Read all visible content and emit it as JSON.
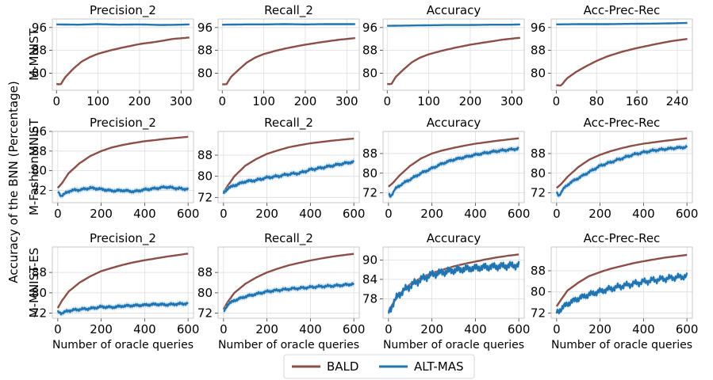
{
  "figure": {
    "ylabel": "Accuracy of the BNN (Percentage)",
    "xlabel": "Number of oracle queries",
    "colors": {
      "BALD": "#8c4f47",
      "ALT-MAS": "#1f74b1",
      "band": "#9ec9e8"
    },
    "legend": {
      "placement": "bottom-center",
      "entries": [
        "BALD",
        "ALT-MAS"
      ]
    }
  },
  "chart_data": [
    {
      "type": "line",
      "row": 0,
      "col": 0,
      "row_label": "M-MNIST",
      "title": "Precision_2",
      "xlim": [
        -10,
        330
      ],
      "ylim": [
        74,
        99
      ],
      "xticks": [
        0,
        100,
        200,
        300
      ],
      "yticks": [
        80,
        88,
        96
      ],
      "xlabel": "",
      "series": [
        {
          "name": "BALD",
          "x": [
            0,
            10,
            20,
            40,
            60,
            80,
            100,
            130,
            160,
            200,
            240,
            280,
            320
          ],
          "y": [
            76.2,
            76.0,
            78.4,
            81.5,
            84.0,
            85.6,
            86.8,
            88.0,
            89.0,
            90.2,
            91.0,
            92.0,
            92.5
          ]
        },
        {
          "name": "ALT-MAS",
          "x": [
            0,
            50,
            100,
            150,
            200,
            250,
            300,
            320
          ],
          "y": [
            97.1,
            97.0,
            97.2,
            97.0,
            97.1,
            96.9,
            97.0,
            97.1
          ]
        }
      ]
    },
    {
      "type": "line",
      "row": 0,
      "col": 1,
      "row_label": "",
      "title": "Recall_2",
      "xlim": [
        -10,
        330
      ],
      "ylim": [
        74,
        99
      ],
      "xticks": [
        0,
        100,
        200,
        300
      ],
      "yticks": [
        80,
        88,
        96
      ],
      "xlabel": "",
      "series": [
        {
          "name": "BALD",
          "x": [
            0,
            10,
            20,
            40,
            60,
            80,
            100,
            130,
            160,
            200,
            240,
            280,
            320
          ],
          "y": [
            76.1,
            76.0,
            78.5,
            81.3,
            83.8,
            85.5,
            86.7,
            87.9,
            88.9,
            90.0,
            90.9,
            91.7,
            92.3
          ]
        },
        {
          "name": "ALT-MAS",
          "x": [
            0,
            50,
            100,
            150,
            200,
            250,
            300,
            320
          ],
          "y": [
            97.0,
            97.1,
            97.1,
            97.2,
            97.1,
            97.2,
            97.2,
            97.2
          ]
        }
      ]
    },
    {
      "type": "line",
      "row": 0,
      "col": 2,
      "row_label": "",
      "title": "Accuracy",
      "xlim": [
        -10,
        330
      ],
      "ylim": [
        74,
        99
      ],
      "xticks": [
        0,
        100,
        200,
        300
      ],
      "yticks": [
        80,
        88,
        96
      ],
      "xlabel": "",
      "series": [
        {
          "name": "BALD",
          "x": [
            0,
            10,
            20,
            40,
            60,
            80,
            100,
            130,
            160,
            200,
            240,
            280,
            320
          ],
          "y": [
            76.2,
            76.1,
            78.6,
            81.4,
            83.9,
            85.5,
            86.6,
            87.8,
            88.8,
            90.0,
            90.9,
            91.8,
            92.4
          ]
        },
        {
          "name": "ALT-MAS",
          "x": [
            0,
            50,
            100,
            150,
            200,
            250,
            300,
            320
          ],
          "y": [
            96.6,
            96.7,
            96.8,
            96.9,
            96.9,
            97.0,
            97.0,
            97.1
          ]
        }
      ]
    },
    {
      "type": "line",
      "row": 0,
      "col": 3,
      "row_label": "",
      "title": "Acc-Prec-Rec",
      "xlim": [
        -10,
        270
      ],
      "ylim": [
        74,
        99
      ],
      "xticks": [
        0,
        80,
        160,
        240
      ],
      "yticks": [
        80,
        88,
        96
      ],
      "xlabel": "",
      "series": [
        {
          "name": "BALD",
          "x": [
            0,
            10,
            20,
            40,
            60,
            80,
            100,
            130,
            160,
            200,
            230,
            260
          ],
          "y": [
            75.8,
            75.6,
            78.0,
            80.5,
            82.5,
            84.3,
            85.8,
            87.5,
            88.8,
            90.3,
            91.3,
            92.0
          ]
        },
        {
          "name": "ALT-MAS",
          "x": [
            0,
            50,
            100,
            150,
            200,
            260
          ],
          "y": [
            97.1,
            97.2,
            97.2,
            97.3,
            97.4,
            97.6
          ]
        }
      ]
    },
    {
      "type": "line",
      "row": 1,
      "col": 0,
      "row_label": "M-FashionMNIST",
      "title": "Precision_2",
      "xlim": [
        -25,
        625
      ],
      "ylim": [
        67,
        96
      ],
      "xticks": [
        0,
        200,
        400,
        600
      ],
      "yticks": [
        72,
        80,
        88,
        96
      ],
      "xlabel": "",
      "series": [
        {
          "name": "BALD",
          "x": [
            0,
            20,
            50,
            100,
            150,
            200,
            250,
            300,
            350,
            400,
            450,
            500,
            550,
            600
          ],
          "y": [
            73,
            75,
            79,
            83,
            86,
            88,
            89.5,
            90.5,
            91.3,
            92,
            92.5,
            93,
            93.4,
            93.8
          ]
        },
        {
          "name": "ALT-MAS",
          "x": [
            0,
            15,
            30,
            60,
            100,
            150,
            200,
            250,
            300,
            350,
            400,
            450,
            500,
            550,
            600
          ],
          "y": [
            71.5,
            69.8,
            70.5,
            72.0,
            72.2,
            73.0,
            72.5,
            71.8,
            72.0,
            71.5,
            72.3,
            72.8,
            73.4,
            72.8,
            72.5
          ]
        }
      ]
    },
    {
      "type": "line",
      "row": 1,
      "col": 1,
      "row_label": "",
      "title": "Recall_2",
      "xlim": [
        -25,
        625
      ],
      "ylim": [
        70,
        97
      ],
      "xticks": [
        0,
        200,
        400,
        600
      ],
      "yticks": [
        72,
        80,
        88
      ],
      "xlabel": "",
      "series": [
        {
          "name": "BALD",
          "x": [
            0,
            20,
            50,
            100,
            150,
            200,
            250,
            300,
            350,
            400,
            450,
            500,
            550,
            600
          ],
          "y": [
            74,
            76.5,
            80,
            84,
            86.5,
            88.5,
            89.8,
            91,
            91.8,
            92.5,
            93,
            93.5,
            93.9,
            94.3
          ]
        },
        {
          "name": "ALT-MAS",
          "x": [
            0,
            20,
            50,
            100,
            150,
            200,
            250,
            300,
            350,
            400,
            450,
            500,
            550,
            600
          ],
          "y": [
            73.5,
            75.5,
            76.5,
            78,
            78.5,
            79.5,
            80,
            80.8,
            81.2,
            82.5,
            83.2,
            84.0,
            84.8,
            85.5
          ]
        }
      ]
    },
    {
      "type": "line",
      "row": 1,
      "col": 2,
      "row_label": "",
      "title": "Accuracy",
      "xlim": [
        -25,
        625
      ],
      "ylim": [
        68,
        97
      ],
      "xticks": [
        0,
        200,
        400,
        600
      ],
      "yticks": [
        72,
        80,
        88
      ],
      "xlabel": "",
      "series": [
        {
          "name": "BALD",
          "x": [
            0,
            20,
            50,
            100,
            150,
            200,
            250,
            300,
            350,
            400,
            450,
            500,
            550,
            600
          ],
          "y": [
            74.5,
            76,
            79,
            83,
            86,
            88,
            89.3,
            90.3,
            91.2,
            92,
            92.6,
            93.2,
            93.7,
            94.2
          ]
        },
        {
          "name": "ALT-MAS",
          "x": [
            0,
            10,
            30,
            60,
            100,
            150,
            200,
            250,
            300,
            350,
            400,
            450,
            500,
            550,
            600
          ],
          "y": [
            71.5,
            70.5,
            73.5,
            75.5,
            77.5,
            80,
            82,
            84,
            85.5,
            86.5,
            87.5,
            88.3,
            89,
            89.5,
            90
          ]
        }
      ]
    },
    {
      "type": "line",
      "row": 1,
      "col": 3,
      "row_label": "",
      "title": "Acc-Prec-Rec",
      "xlim": [
        -25,
        625
      ],
      "ylim": [
        68,
        97
      ],
      "xticks": [
        0,
        200,
        400,
        600
      ],
      "yticks": [
        72,
        80,
        88
      ],
      "xlabel": "",
      "series": [
        {
          "name": "BALD",
          "x": [
            0,
            20,
            50,
            100,
            150,
            200,
            250,
            300,
            350,
            400,
            450,
            500,
            550,
            600
          ],
          "y": [
            74,
            75.5,
            78.5,
            82.5,
            85.5,
            87.5,
            89,
            90.2,
            91.2,
            92,
            92.6,
            93.2,
            93.7,
            94.2
          ]
        },
        {
          "name": "ALT-MAS",
          "x": [
            0,
            10,
            30,
            60,
            100,
            150,
            200,
            250,
            300,
            350,
            400,
            450,
            500,
            550,
            600
          ],
          "y": [
            72,
            70.8,
            73.5,
            76,
            78,
            80.5,
            83,
            84.5,
            86,
            87.5,
            88.5,
            89.3,
            89.8,
            90.3,
            90.6
          ]
        }
      ]
    },
    {
      "type": "line",
      "row": 2,
      "col": 0,
      "row_label": "M-MNIST-ES",
      "title": "Precision_2",
      "xlim": [
        -25,
        625
      ],
      "ylim": [
        70,
        98
      ],
      "xticks": [
        0,
        200,
        400,
        600
      ],
      "yticks": [
        72,
        80,
        88
      ],
      "xlabel": "Number of oracle queries",
      "series": [
        {
          "name": "BALD",
          "x": [
            0,
            20,
            50,
            100,
            150,
            200,
            250,
            300,
            350,
            400,
            450,
            500,
            550,
            600
          ],
          "y": [
            74,
            77,
            80.5,
            84,
            86.5,
            88.5,
            89.8,
            91,
            92,
            92.8,
            93.5,
            94.2,
            94.8,
            95.4
          ]
        },
        {
          "name": "ALT-MAS",
          "x": [
            0,
            20,
            50,
            100,
            150,
            200,
            250,
            300,
            350,
            400,
            450,
            500,
            550,
            600
          ],
          "y": [
            72.5,
            72.0,
            73.0,
            73.5,
            73.8,
            74.5,
            74.3,
            74.8,
            75.0,
            75.2,
            75.5,
            75.3,
            75.6,
            75.8
          ]
        }
      ]
    },
    {
      "type": "line",
      "row": 2,
      "col": 1,
      "row_label": "",
      "title": "Recall_2",
      "xlim": [
        -25,
        625
      ],
      "ylim": [
        70,
        98
      ],
      "xticks": [
        0,
        200,
        400,
        600
      ],
      "yticks": [
        72,
        80,
        88
      ],
      "xlabel": "Number of oracle queries",
      "series": [
        {
          "name": "BALD",
          "x": [
            0,
            20,
            50,
            100,
            150,
            200,
            250,
            300,
            350,
            400,
            450,
            500,
            550,
            600
          ],
          "y": [
            73.5,
            76.5,
            80,
            83.5,
            86,
            88,
            89.5,
            90.8,
            91.8,
            92.7,
            93.5,
            94.2,
            94.8,
            95.3
          ]
        },
        {
          "name": "ALT-MAS",
          "x": [
            0,
            20,
            50,
            100,
            150,
            200,
            250,
            300,
            350,
            400,
            450,
            500,
            550,
            600
          ],
          "y": [
            72.5,
            75.5,
            77,
            78.5,
            79.5,
            80.5,
            81,
            81.5,
            81.8,
            82.2,
            82.5,
            82.7,
            83,
            83.5
          ]
        }
      ]
    },
    {
      "type": "line",
      "row": 2,
      "col": 2,
      "row_label": "",
      "title": "Accuracy",
      "xlim": [
        -25,
        625
      ],
      "ylim": [
        72,
        94
      ],
      "xticks": [
        0,
        200,
        400,
        600
      ],
      "yticks": [
        78,
        84,
        90
      ],
      "xlabel": "Number of oracle queries",
      "series": [
        {
          "name": "BALD",
          "x": [
            0,
            20,
            50,
            100,
            150,
            200,
            250,
            300,
            350,
            400,
            450,
            500,
            550,
            600
          ],
          "y": [
            74,
            76.5,
            79.5,
            82.5,
            84.5,
            86,
            87,
            88,
            88.8,
            89.5,
            90.2,
            90.8,
            91.3,
            91.7
          ]
        },
        {
          "name": "ALT-MAS",
          "x": [
            0,
            20,
            50,
            100,
            150,
            200,
            250,
            300,
            350,
            400,
            450,
            500,
            550,
            600
          ],
          "y": [
            73.5,
            76.5,
            79.5,
            82,
            84,
            85.5,
            86.2,
            86.8,
            87.2,
            87.5,
            87.8,
            88.0,
            88.2,
            88.4
          ]
        }
      ]
    },
    {
      "type": "line",
      "row": 2,
      "col": 3,
      "row_label": "",
      "title": "Acc-Prec-Rec",
      "xlim": [
        -25,
        625
      ],
      "ylim": [
        70,
        97
      ],
      "xticks": [
        0,
        200,
        400,
        600
      ],
      "yticks": [
        72,
        80,
        88
      ],
      "xlabel": "Number of oracle queries",
      "series": [
        {
          "name": "BALD",
          "x": [
            0,
            20,
            50,
            100,
            150,
            200,
            250,
            300,
            350,
            400,
            450,
            500,
            550,
            600
          ],
          "y": [
            74.5,
            77,
            80.5,
            83.5,
            86,
            87.5,
            88.8,
            89.8,
            90.8,
            91.6,
            92.3,
            93,
            93.5,
            94
          ]
        },
        {
          "name": "ALT-MAS",
          "x": [
            0,
            20,
            50,
            100,
            150,
            200,
            250,
            300,
            350,
            400,
            450,
            500,
            550,
            600
          ],
          "y": [
            72.2,
            73.5,
            75.5,
            77.5,
            79,
            80.2,
            81.2,
            82.2,
            83,
            83.8,
            84.5,
            85,
            85.5,
            86
          ]
        }
      ]
    }
  ]
}
